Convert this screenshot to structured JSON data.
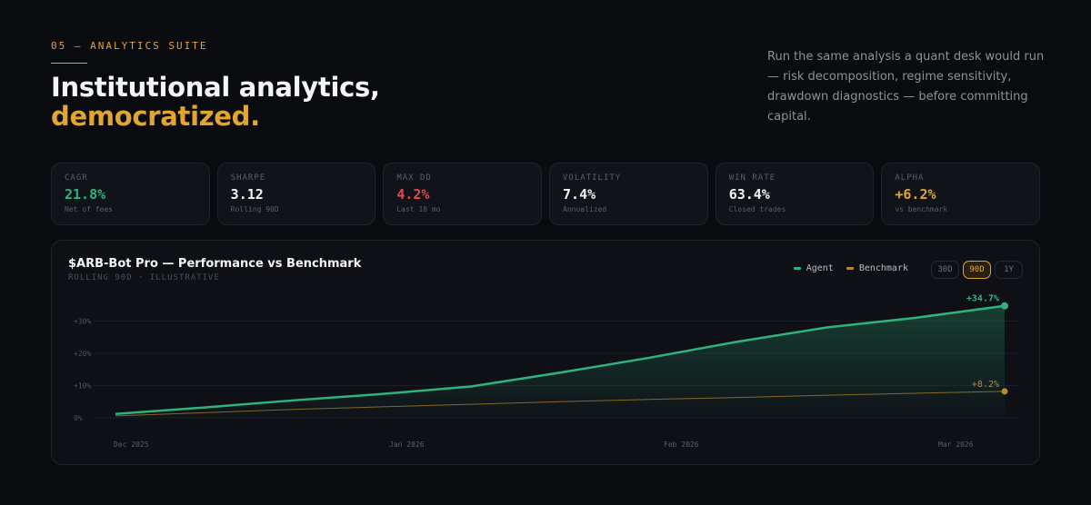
{
  "section": {
    "eyebrow": "05 — ANALYTICS SUITE"
  },
  "headline": {
    "line1": "Institutional analytics,",
    "line2": "democratized."
  },
  "intro": "Run the same analysis a quant desk would run — risk decomposition, regime sensitivity, drawdown diagnostics — before committing capital.",
  "stats": [
    {
      "label": "CAGR",
      "value": "21.8%",
      "sub": "Net of fees",
      "color": "#2fb37c"
    },
    {
      "label": "SHARPE",
      "value": "3.12",
      "sub": "Rolling 90D",
      "color": "#f3f4f8"
    },
    {
      "label": "MAX DD",
      "value": "4.2%",
      "sub": "Last 18 mo",
      "color": "#e5484d"
    },
    {
      "label": "VOLATILITY",
      "value": "7.4%",
      "sub": "Annualized",
      "color": "#f3f4f8"
    },
    {
      "label": "WIN RATE",
      "value": "63.4%",
      "sub": "Closed trades",
      "color": "#f3f4f8"
    },
    {
      "label": "ALPHA",
      "value": "+6.2%",
      "sub": "vs benchmark",
      "color": "#e2a532"
    }
  ],
  "chart_card": {
    "title": "$ARB-Bot Pro — Performance vs Benchmark",
    "subtitle": "ROLLING 90D · ILLUSTRATIVE",
    "legend": [
      {
        "name": "Agent",
        "color": "#2fb37c"
      },
      {
        "name": "Benchmark",
        "color": "#b88a2c"
      }
    ],
    "ranges": [
      "30D",
      "90D",
      "1Y"
    ],
    "active_range": "90D"
  },
  "chart_data": {
    "type": "area",
    "x_labels": [
      "Dec 2025",
      "Jan 2026",
      "Feb 2026",
      "Mar 2026"
    ],
    "y_ticks": [
      "0%",
      "+10%",
      "+20%",
      "+30%"
    ],
    "ylim": [
      0,
      30
    ],
    "grid": true,
    "legend_position": "top-right",
    "series": [
      {
        "name": "Agent",
        "color": "#2fb37c",
        "end_label": "+34.7%",
        "values": [
          1.2,
          3.2,
          5.4,
          7.4,
          9.7,
          14.0,
          18.6,
          23.6,
          28.0,
          31.0,
          34.7
        ]
      },
      {
        "name": "Benchmark",
        "color": "#b88a2c",
        "end_label": "+8.2%",
        "values": [
          0.6,
          1.6,
          2.6,
          3.4,
          4.2,
          5.0,
          5.7,
          6.3,
          7.0,
          7.6,
          8.2
        ]
      }
    ]
  }
}
